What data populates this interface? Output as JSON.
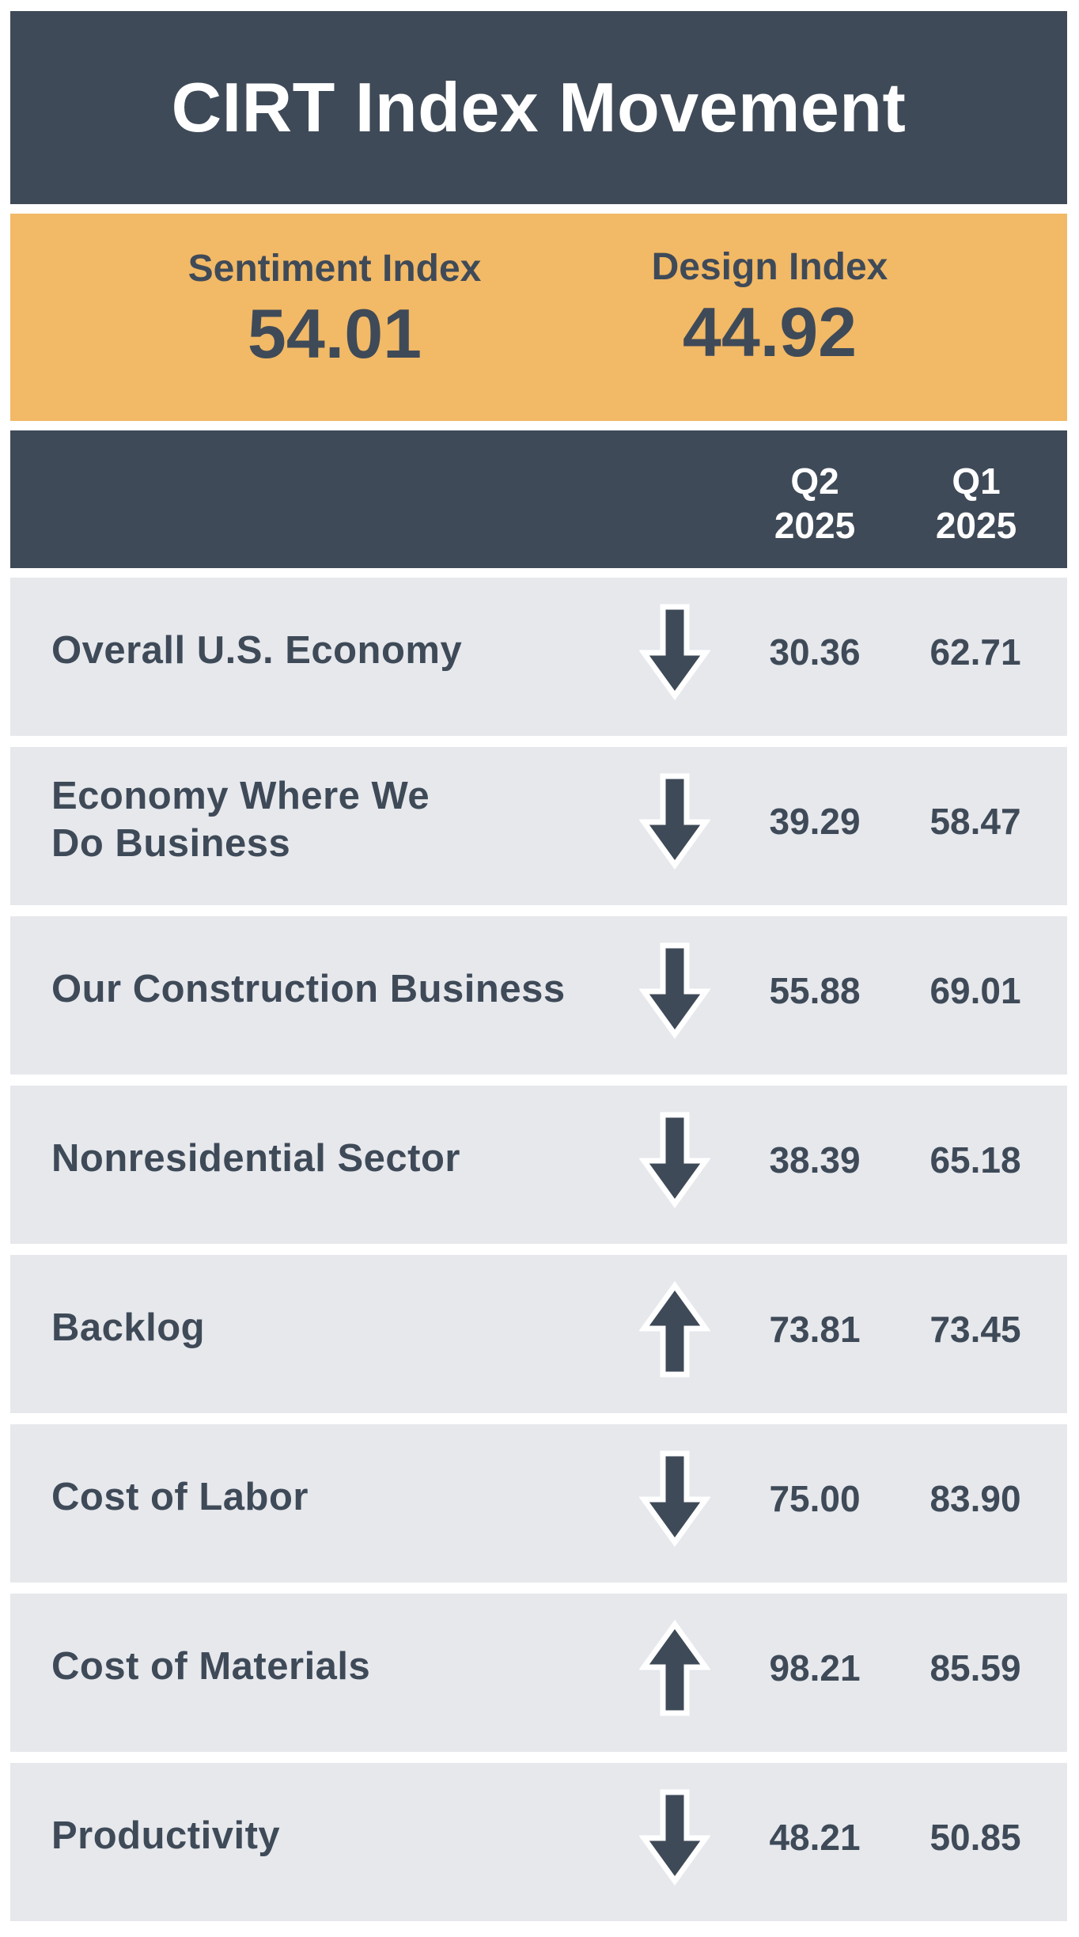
{
  "title": "CIRT Index Movement",
  "indices": {
    "sentiment": {
      "label": "Sentiment Index",
      "value": "54.01"
    },
    "design": {
      "label": "Design Index",
      "value": "44.92"
    }
  },
  "columns": {
    "q2": {
      "line1": "Q2",
      "line2": "2025"
    },
    "q1": {
      "line1": "Q1",
      "line2": "2025"
    }
  },
  "colors": {
    "dark": "#3f4a58",
    "accent": "#f2b966",
    "row_bg": "#e6e8ec"
  },
  "chart_data": {
    "type": "table",
    "title": "CIRT Index Movement",
    "columns": [
      "Q2 2025",
      "Q1 2025"
    ],
    "rows": [
      {
        "label": "Overall U.S. Economy",
        "direction": "down",
        "q2": "30.36",
        "q1": "62.71"
      },
      {
        "label": "Economy Where We\nDo Business",
        "direction": "down",
        "q2": "39.29",
        "q1": "58.47"
      },
      {
        "label": "Our Construction Business",
        "direction": "down",
        "q2": "55.88",
        "q1": "69.01"
      },
      {
        "label": "Nonresidential Sector",
        "direction": "down",
        "q2": "38.39",
        "q1": "65.18"
      },
      {
        "label": "Backlog",
        "direction": "up",
        "q2": "73.81",
        "q1": "73.45"
      },
      {
        "label": "Cost of Labor",
        "direction": "down",
        "q2": "75.00",
        "q1": "83.90"
      },
      {
        "label": "Cost of Materials",
        "direction": "up",
        "q2": "98.21",
        "q1": "85.59"
      },
      {
        "label": "Productivity",
        "direction": "down",
        "q2": "48.21",
        "q1": "50.85"
      }
    ]
  }
}
